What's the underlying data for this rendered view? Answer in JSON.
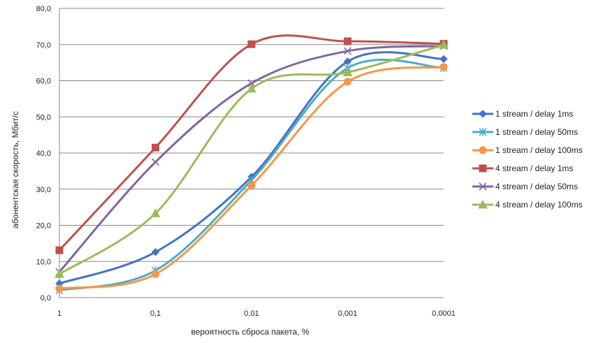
{
  "chart_data": {
    "type": "line",
    "title": "",
    "xlabel": "вероятность сброса пакета, %",
    "ylabel": "абонентская скорость, Мбит/с",
    "categories": [
      "1",
      "0,1",
      "0,01",
      "0,001",
      "0,0001"
    ],
    "ylim": [
      0,
      80
    ],
    "yticks": [
      "0,0",
      "10,0",
      "20,0",
      "30,0",
      "40,0",
      "50,0",
      "60,0",
      "70,0",
      "80,0"
    ],
    "grid": true,
    "legend_position": "right",
    "smooth": true,
    "series": [
      {
        "name": "1 stream / delay 1ms",
        "color": "#4472C4",
        "marker": "diamond",
        "values": [
          3.9,
          12.6,
          33.4,
          65.3,
          66.0
        ]
      },
      {
        "name": "1 stream / delay 50ms",
        "color": "#4BACC6",
        "marker": "star",
        "values": [
          2.0,
          7.5,
          32.5,
          63.5,
          63.5
        ]
      },
      {
        "name": "1 stream / delay 100ms",
        "color": "#F79646",
        "marker": "circle",
        "values": [
          2.5,
          6.5,
          31.0,
          59.7,
          63.8
        ]
      },
      {
        "name": "4 stream / delay 1ms",
        "color": "#C0504D",
        "marker": "square",
        "values": [
          13.1,
          41.5,
          70.1,
          70.9,
          70.2
        ]
      },
      {
        "name": "4 stream / delay 50ms",
        "color": "#8064A2",
        "marker": "x",
        "values": [
          7.1,
          37.5,
          59.3,
          68.2,
          69.6
        ]
      },
      {
        "name": "4 stream / delay 100ms",
        "color": "#9BBB59",
        "marker": "triangle",
        "values": [
          6.5,
          23.3,
          57.8,
          62.3,
          69.9
        ]
      }
    ]
  }
}
